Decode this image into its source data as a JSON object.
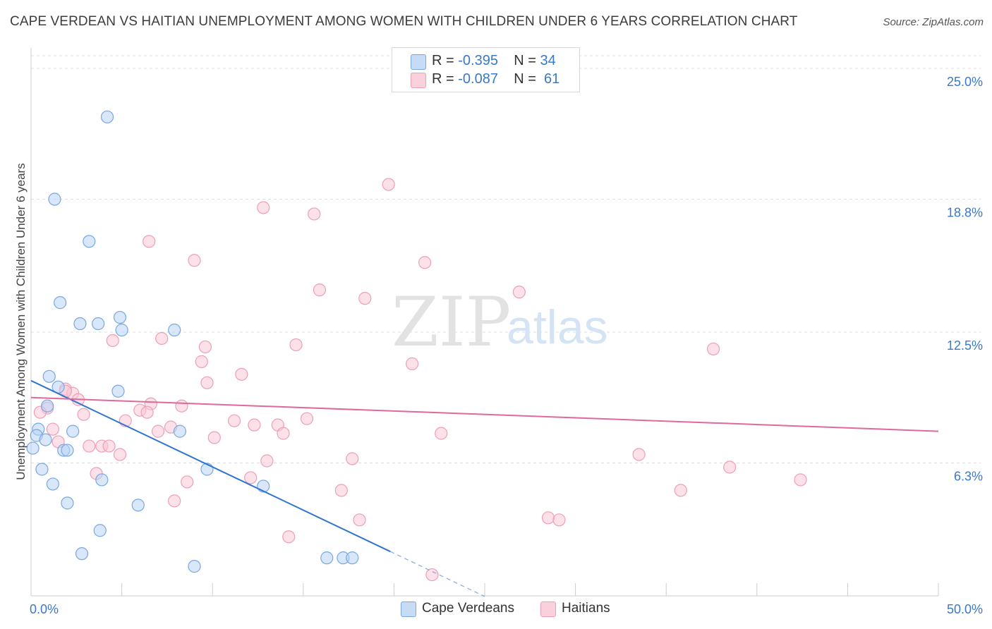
{
  "title": "CAPE VERDEAN VS HAITIAN UNEMPLOYMENT AMONG WOMEN WITH CHILDREN UNDER 6 YEARS CORRELATION CHART",
  "source": "Source: ZipAtlas.com",
  "watermark": {
    "zip": "ZIP",
    "atlas": "atlas"
  },
  "legend": {
    "rows": [
      {
        "r_label": "R =",
        "r_value": "-0.395",
        "n_label": "N =",
        "n_value": "34",
        "color": "#a8c8f0"
      },
      {
        "r_label": "R =",
        "r_value": "-0.087",
        "n_label": "N =",
        "n_value": "61",
        "color": "#f5b8cb"
      }
    ]
  },
  "bottom_legend": {
    "cape_verdeans": "Cape Verdeans",
    "haitians": "Haitians"
  },
  "colors": {
    "blue_fill": "#b8d3f5",
    "blue_stroke": "#7aa7e0",
    "blue_line": "#2f74d0",
    "pink_fill": "#f9c8d6",
    "pink_stroke": "#eba0b8",
    "pink_line": "#e0689a",
    "axis_label": "#3a78c9",
    "grid": "#dddddd"
  },
  "chart_data": {
    "type": "scatter",
    "title": "CAPE VERDEAN VS HAITIAN UNEMPLOYMENT AMONG WOMEN WITH CHILDREN UNDER 6 YEARS CORRELATION CHART",
    "xlabel": "",
    "ylabel": "Unemployment Among Women with Children Under 6 years",
    "xlim": [
      0,
      50
    ],
    "ylim": [
      0,
      25
    ],
    "x_tick_labels": [
      "0.0%",
      "50.0%"
    ],
    "y_ticks": [
      6.3,
      12.5,
      18.8,
      25.0
    ],
    "y_tick_labels": [
      "6.3%",
      "12.5%",
      "18.8%",
      "25.0%"
    ],
    "grid": true,
    "series": [
      {
        "name": "Cape Verdeans",
        "r": -0.395,
        "n": 34,
        "trend": {
          "x0": 0,
          "y0": 10.2,
          "x1": 19.8,
          "y1": 2.1,
          "dashed_to_x": 25.0
        },
        "points": [
          [
            4.2,
            22.7
          ],
          [
            1.3,
            18.8
          ],
          [
            3.2,
            16.8
          ],
          [
            1.6,
            13.9
          ],
          [
            2.7,
            12.9
          ],
          [
            3.7,
            12.9
          ],
          [
            4.9,
            13.2
          ],
          [
            5.0,
            12.6
          ],
          [
            7.9,
            12.6
          ],
          [
            1.0,
            10.4
          ],
          [
            1.5,
            9.9
          ],
          [
            4.8,
            9.7
          ],
          [
            0.9,
            9.0
          ],
          [
            0.4,
            7.9
          ],
          [
            2.3,
            7.8
          ],
          [
            8.2,
            7.8
          ],
          [
            0.3,
            7.6
          ],
          [
            0.8,
            7.4
          ],
          [
            0.1,
            7.0
          ],
          [
            1.8,
            6.9
          ],
          [
            2.0,
            6.9
          ],
          [
            0.6,
            6.0
          ],
          [
            9.7,
            6.0
          ],
          [
            1.2,
            5.3
          ],
          [
            3.9,
            5.5
          ],
          [
            12.8,
            5.2
          ],
          [
            2.0,
            4.4
          ],
          [
            5.9,
            4.3
          ],
          [
            3.8,
            3.1
          ],
          [
            2.8,
            2.0
          ],
          [
            9.0,
            1.4
          ],
          [
            16.3,
            1.8
          ],
          [
            17.2,
            1.8
          ],
          [
            17.7,
            1.8
          ]
        ]
      },
      {
        "name": "Haitians",
        "r": -0.087,
        "n": 61,
        "trend": {
          "x0": 0,
          "y0": 9.4,
          "x1": 50,
          "y1": 7.8
        },
        "points": [
          [
            19.7,
            19.5
          ],
          [
            12.8,
            18.4
          ],
          [
            15.6,
            18.1
          ],
          [
            6.5,
            16.8
          ],
          [
            9.0,
            15.9
          ],
          [
            21.7,
            15.8
          ],
          [
            15.9,
            14.5
          ],
          [
            26.9,
            14.4
          ],
          [
            18.4,
            14.1
          ],
          [
            7.2,
            12.2
          ],
          [
            4.5,
            12.1
          ],
          [
            14.6,
            11.9
          ],
          [
            37.6,
            11.7
          ],
          [
            9.6,
            11.8
          ],
          [
            9.4,
            11.1
          ],
          [
            21.0,
            11.0
          ],
          [
            11.6,
            10.5
          ],
          [
            9.7,
            10.1
          ],
          [
            1.9,
            9.8
          ],
          [
            2.3,
            9.6
          ],
          [
            2.6,
            9.3
          ],
          [
            0.9,
            8.9
          ],
          [
            6.6,
            9.1
          ],
          [
            8.3,
            9.0
          ],
          [
            0.5,
            8.7
          ],
          [
            6.0,
            8.8
          ],
          [
            6.4,
            8.7
          ],
          [
            2.9,
            8.6
          ],
          [
            5.2,
            8.3
          ],
          [
            11.2,
            8.3
          ],
          [
            15.2,
            8.4
          ],
          [
            12.3,
            8.1
          ],
          [
            13.6,
            8.1
          ],
          [
            7.7,
            8.0
          ],
          [
            1.2,
            7.9
          ],
          [
            7.0,
            7.8
          ],
          [
            13.9,
            7.7
          ],
          [
            22.6,
            7.7
          ],
          [
            10.1,
            7.5
          ],
          [
            1.5,
            7.3
          ],
          [
            3.2,
            7.1
          ],
          [
            3.9,
            7.1
          ],
          [
            4.3,
            7.1
          ],
          [
            4.9,
            6.7
          ],
          [
            33.5,
            6.7
          ],
          [
            13.0,
            6.4
          ],
          [
            17.7,
            6.5
          ],
          [
            38.5,
            6.1
          ],
          [
            3.6,
            5.8
          ],
          [
            12.1,
            5.6
          ],
          [
            8.6,
            5.4
          ],
          [
            42.4,
            5.5
          ],
          [
            17.1,
            5.0
          ],
          [
            35.8,
            5.0
          ],
          [
            7.9,
            4.5
          ],
          [
            18.1,
            3.6
          ],
          [
            28.5,
            3.7
          ],
          [
            29.1,
            3.6
          ],
          [
            14.2,
            2.8
          ],
          [
            22.1,
            1.0
          ],
          [
            1.9,
            9.7
          ]
        ]
      }
    ]
  }
}
